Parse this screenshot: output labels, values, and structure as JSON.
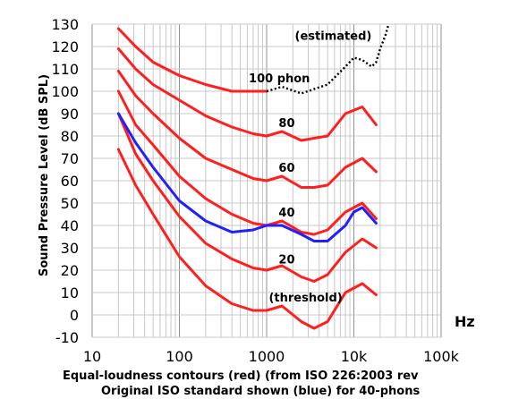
{
  "chart_data": {
    "type": "line",
    "title": "",
    "xlabel": "Hz",
    "ylabel": "Sound Pressure Level (dB SPL)",
    "xscale": "log",
    "xlim": [
      10,
      100000
    ],
    "ylim": [
      -10,
      130
    ],
    "grid": true,
    "x_tick_labels": [
      "10",
      "100",
      "1000",
      "10k",
      "100k"
    ],
    "x_tick_values": [
      10,
      100,
      1000,
      10000,
      100000
    ],
    "y_ticks": [
      -10,
      0,
      10,
      20,
      30,
      40,
      50,
      60,
      70,
      80,
      90,
      100,
      110,
      120,
      130
    ],
    "caption": [
      "Equal-loudness contours (red) (from ISO 226:2003 rev",
      "Original ISO standard shown (blue) for 40-phons"
    ],
    "annotations": [
      {
        "text": "(estimated)",
        "x": 5800,
        "y": 123
      },
      {
        "text": "100 phon",
        "x": 1400,
        "y": 104
      },
      {
        "text": "80",
        "x": 1700,
        "y": 84
      },
      {
        "text": "60",
        "x": 1700,
        "y": 64
      },
      {
        "text": "40",
        "x": 1700,
        "y": 44
      },
      {
        "text": "20",
        "x": 1700,
        "y": 23
      },
      {
        "text": "(threshold)",
        "x": 2800,
        "y": 6
      }
    ],
    "series": [
      {
        "color": "#ff1f1f",
        "style": "solid",
        "x": [
          20,
          31.5,
          50,
          100,
          200,
          400,
          700,
          1000,
          1500,
          2500,
          3500,
          5000,
          8000,
          12500,
          18000
        ],
        "y": [
          74,
          58,
          45,
          26,
          13,
          5,
          2,
          2,
          4,
          -3,
          -6,
          -3,
          10,
          14,
          9
        ]
      },
      {
        "color": "#ff1f1f",
        "style": "solid",
        "x": [
          20,
          31.5,
          50,
          100,
          200,
          400,
          700,
          1000,
          1500,
          2500,
          3500,
          5000,
          8000,
          12500,
          18000
        ],
        "y": [
          90,
          72,
          60,
          44,
          32,
          25,
          21,
          20,
          22,
          17,
          15,
          18,
          28,
          34,
          30
        ]
      },
      {
        "color": "#ff1f1f",
        "style": "solid",
        "x": [
          20,
          31.5,
          50,
          100,
          200,
          400,
          700,
          1000,
          1500,
          2500,
          3500,
          5000,
          8000,
          12500,
          18000
        ],
        "y": [
          100,
          85,
          76,
          62,
          52,
          45,
          41,
          40,
          42,
          37,
          36,
          38,
          46,
          50,
          43
        ]
      },
      {
        "color": "#ff1f1f",
        "style": "solid",
        "x": [
          20,
          31.5,
          50,
          100,
          200,
          400,
          700,
          1000,
          1500,
          2500,
          3500,
          5000,
          8000,
          12500,
          18000
        ],
        "y": [
          109,
          98,
          90,
          79,
          70,
          65,
          61,
          60,
          62,
          57,
          57,
          58,
          66,
          70,
          64
        ]
      },
      {
        "color": "#ff1f1f",
        "style": "solid",
        "x": [
          20,
          31.5,
          50,
          100,
          200,
          400,
          700,
          1000,
          1500,
          2500,
          3500,
          5000,
          8000,
          12500,
          18000
        ],
        "y": [
          119,
          110,
          103,
          96,
          89,
          84,
          81,
          80,
          82,
          78,
          79,
          80,
          90,
          93,
          85
        ]
      },
      {
        "color": "#ff1f1f",
        "style": "solid",
        "x": [
          20,
          31.5,
          50,
          100,
          200,
          400,
          700,
          1000
        ],
        "y": [
          128,
          120,
          113,
          107,
          103,
          100,
          100,
          100
        ]
      },
      {
        "color": "#2020ff",
        "style": "solid",
        "x": [
          20,
          31.5,
          50,
          100,
          200,
          400,
          700,
          1000,
          1500,
          2500,
          3500,
          5000,
          8000,
          10000,
          12500,
          18000
        ],
        "y": [
          90,
          77,
          66,
          51,
          42,
          37,
          38,
          40,
          40,
          36,
          33,
          33,
          40,
          46,
          48,
          41
        ]
      },
      {
        "color": "#000000",
        "style": "dotted",
        "x": [
          1000,
          1500,
          2500,
          3500,
          5000,
          8000,
          10000,
          12500,
          16000,
          18000,
          20000,
          23000,
          25000
        ],
        "y": [
          100,
          102,
          99,
          101,
          103,
          111,
          115,
          114,
          111,
          113,
          119,
          125,
          130
        ]
      }
    ]
  }
}
